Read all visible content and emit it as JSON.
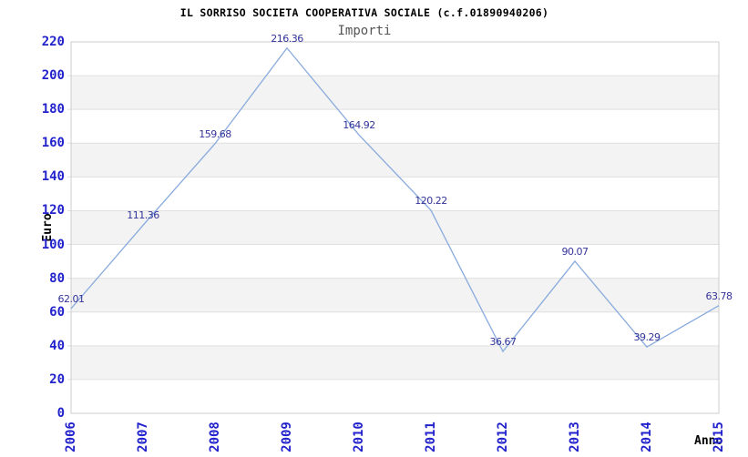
{
  "title": "IL SORRISO SOCIETA COOPERATIVA SOCIALE (c.f.01890940206)",
  "subtitle": "Importi",
  "chart_data": {
    "type": "line",
    "x": [
      "2006",
      "2007",
      "2008",
      "2009",
      "2010",
      "2011",
      "2012",
      "2013",
      "2014",
      "2015"
    ],
    "series": [
      {
        "name": "Importi",
        "values": [
          62.01,
          111.36,
          159.68,
          216.36,
          164.92,
          120.22,
          36.67,
          90.07,
          39.29,
          63.78
        ]
      }
    ],
    "title": "IL SORRISO SOCIETA COOPERATIVA SOCIALE (c.f.01890940206)",
    "subtitle": "Importi",
    "xlabel": "Anno",
    "ylabel": "Euro",
    "ylim": [
      0,
      220
    ],
    "ytick_step": 20,
    "yticks": [
      0,
      20,
      40,
      60,
      80,
      100,
      120,
      140,
      160,
      180,
      200,
      220
    ],
    "grid": "horizontal-bands-alternating",
    "legend_position": "none",
    "data_labels_shown": true,
    "colors": {
      "line": "#88aadd",
      "data_label": "#333399",
      "axis_tick_label": "#2222cc",
      "band_fill": "#f3f3f3",
      "gridline": "#e0e0e0",
      "plot_border": "#cccccc",
      "title_text": "#000000",
      "subtitle_text": "#555555"
    }
  }
}
